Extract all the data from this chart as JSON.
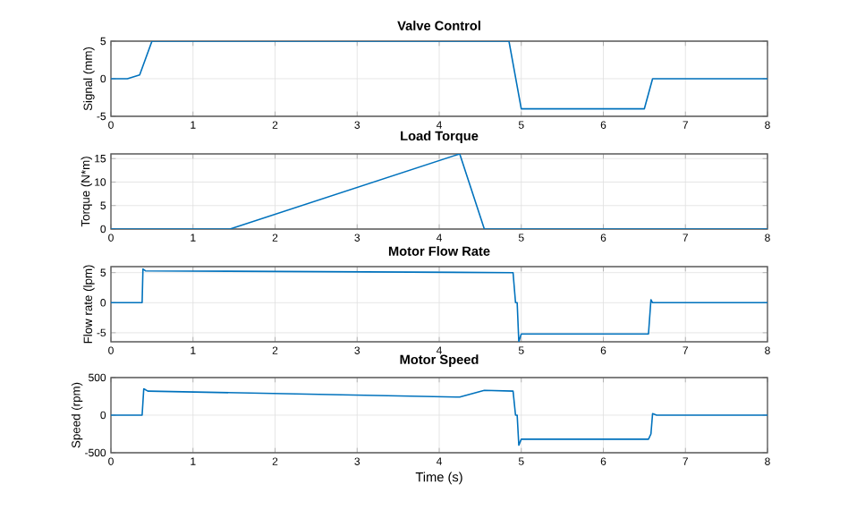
{
  "chart_data": [
    {
      "type": "line",
      "title": "Valve Control",
      "ylabel": "Signal (mm)",
      "xlim": [
        0,
        8
      ],
      "ylim": [
        -5,
        5
      ],
      "xticks": [
        0,
        1,
        2,
        3,
        4,
        5,
        6,
        7,
        8
      ],
      "yticks": [
        -5,
        0,
        5
      ],
      "grid": true,
      "x": [
        0,
        0.2,
        0.35,
        0.5,
        4.85,
        5.0,
        6.5,
        6.6,
        8
      ],
      "series": [
        {
          "color": "#0072bd",
          "values": [
            0,
            0,
            0.5,
            5,
            5,
            -4,
            -4,
            0,
            0
          ]
        }
      ]
    },
    {
      "type": "line",
      "title": "Load Torque",
      "ylabel": "Torque (N*m)",
      "xlim": [
        0,
        8
      ],
      "ylim": [
        0,
        16
      ],
      "xticks": [
        0,
        1,
        2,
        3,
        4,
        5,
        6,
        7,
        8
      ],
      "yticks": [
        0,
        5,
        10,
        15
      ],
      "grid": true,
      "x": [
        0,
        1.45,
        4.25,
        4.55,
        8
      ],
      "series": [
        {
          "color": "#0072bd",
          "values": [
            0,
            0,
            16,
            0,
            0
          ]
        }
      ]
    },
    {
      "type": "line",
      "title": "Motor Flow Rate",
      "ylabel": "Flow rate (lpm)",
      "xlim": [
        0,
        8
      ],
      "ylim": [
        -6.5,
        6
      ],
      "xticks": [
        0,
        1,
        2,
        3,
        4,
        5,
        6,
        7,
        8
      ],
      "yticks": [
        -5,
        0,
        5
      ],
      "grid": true,
      "x": [
        0,
        0.38,
        0.39,
        0.42,
        4.9,
        4.93,
        4.95,
        4.97,
        5.0,
        6.55,
        6.58,
        6.6,
        8
      ],
      "series": [
        {
          "color": "#0072bd",
          "values": [
            0,
            0,
            5.6,
            5.3,
            5.0,
            0,
            0,
            -6.5,
            -5.2,
            -5.2,
            0.5,
            0,
            0
          ]
        }
      ]
    },
    {
      "type": "line",
      "title": "Motor Speed",
      "xlabel": "Time (s)",
      "ylabel": "Speed (rpm)",
      "xlim": [
        0,
        8
      ],
      "ylim": [
        -500,
        500
      ],
      "xticks": [
        0,
        1,
        2,
        3,
        4,
        5,
        6,
        7,
        8
      ],
      "yticks": [
        -500,
        0,
        500
      ],
      "grid": true,
      "x": [
        0,
        0.38,
        0.4,
        0.45,
        4.25,
        4.55,
        4.9,
        4.93,
        4.95,
        4.97,
        5.0,
        6.55,
        6.58,
        6.6,
        6.65,
        8
      ],
      "series": [
        {
          "color": "#0072bd",
          "values": [
            0,
            0,
            350,
            320,
            240,
            330,
            320,
            0,
            0,
            -400,
            -320,
            -320,
            -250,
            20,
            0,
            0
          ]
        }
      ]
    }
  ]
}
